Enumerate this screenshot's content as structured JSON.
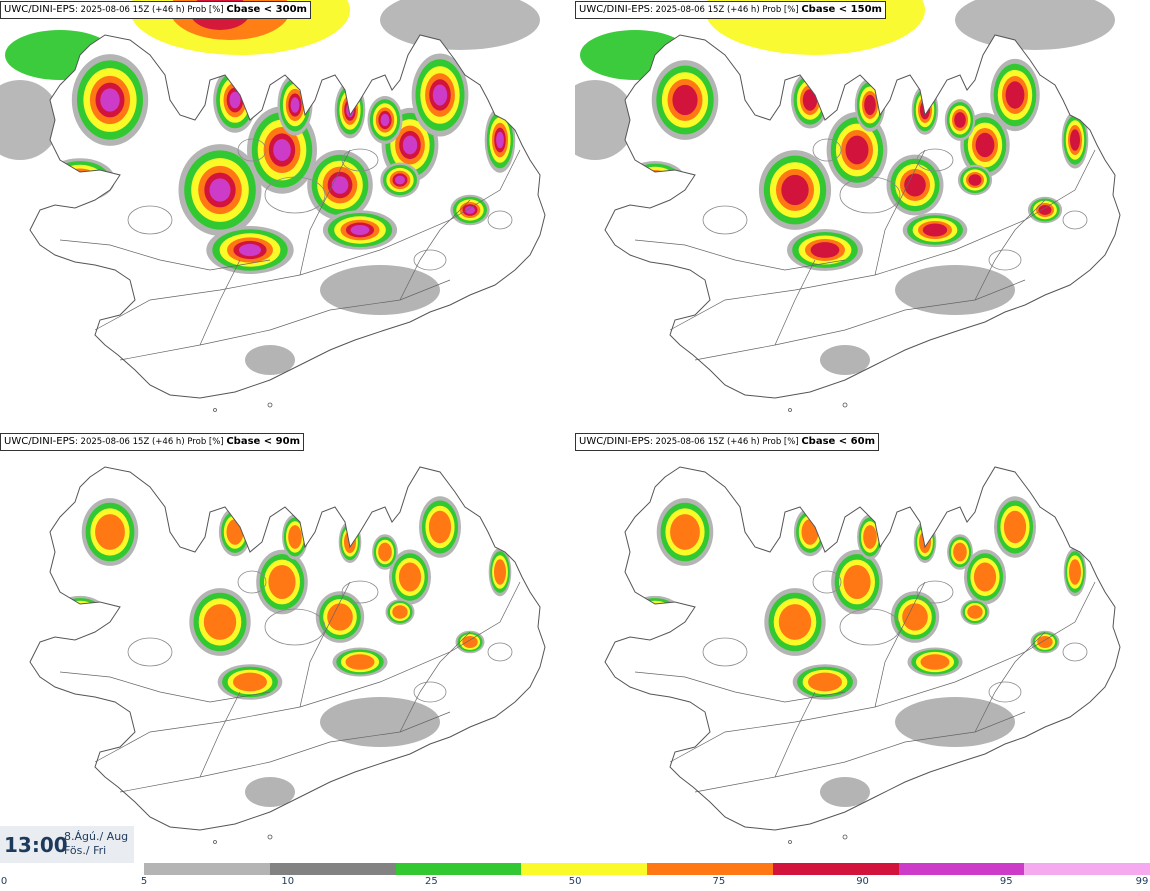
{
  "panels": [
    {
      "model": "UWC/DINI-EPS",
      "run": "2025-08-06 15Z (+46 h) Prob [%]",
      "param": "Cbase < 300m",
      "level": 4
    },
    {
      "model": "UWC/DINI-EPS",
      "run": "2025-08-06 15Z (+46 h) Prob [%]",
      "param": "Cbase < 150m",
      "level": 3
    },
    {
      "model": "UWC/DINI-EPS",
      "run": "2025-08-06 15Z (+46 h) Prob [%]",
      "param": "Cbase < 90m",
      "level": 2
    },
    {
      "model": "UWC/DINI-EPS",
      "run": "2025-08-06 15Z (+46 h) Prob [%]",
      "param": "Cbase < 60m",
      "level": 2
    }
  ],
  "time": {
    "clock": "13:00",
    "date_line1": "8.Ágú./ Aug",
    "date_line2": "Fös./ Fri"
  },
  "colorbar": {
    "ticks": [
      "0",
      "5",
      "10",
      "25",
      "50",
      "75",
      "90",
      "95",
      "99"
    ],
    "colors": [
      "#ffffff",
      "#b4b4b4",
      "#828282",
      "#32c832",
      "#fafa28",
      "#ff7814",
      "#d2143c",
      "#cd3cc8",
      "#f5aaf0"
    ]
  }
}
